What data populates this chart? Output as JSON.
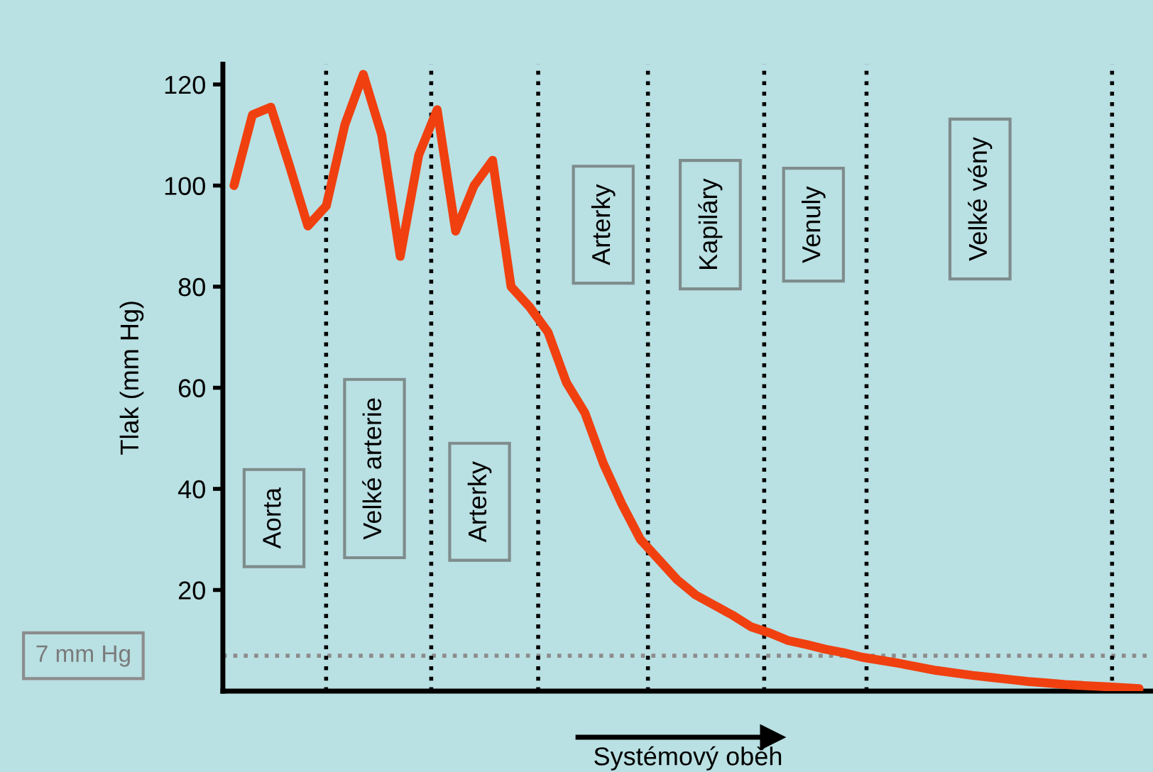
{
  "chart_data": {
    "type": "line",
    "ylabel": "Tlak (mm Hg)",
    "xlabel": "Systémový oběh",
    "categories": [
      null,
      null,
      null,
      null,
      null,
      null,
      null,
      null,
      null,
      null,
      null,
      null,
      null,
      null,
      null,
      null,
      null,
      null,
      null,
      null,
      null,
      null,
      null,
      null,
      null,
      null,
      null,
      null,
      null,
      null,
      null,
      null,
      null,
      null,
      null,
      null,
      null,
      null,
      null,
      null,
      null,
      null,
      null,
      null,
      null,
      null,
      null,
      null,
      null,
      null
    ],
    "series": [
      {
        "color": "#f0400f",
        "values": [
          100,
          114,
          115.5,
          104,
          92,
          96,
          112,
          122,
          110,
          86,
          106,
          115,
          91,
          100,
          105,
          80,
          76,
          71,
          61,
          55,
          45,
          37,
          30,
          26,
          22,
          19,
          17,
          15,
          12.7,
          11.5,
          10,
          9.2,
          8.3,
          7.6,
          6.7,
          6.1,
          5.5,
          4.8,
          4.1,
          3.6,
          3.1,
          2.7,
          2.3,
          1.9,
          1.6,
          1.3,
          1.1,
          0.9,
          0.7,
          0.5
        ]
      }
    ],
    "ylim": [
      0,
      124
    ],
    "yticks": [
      20,
      40,
      60,
      80,
      100,
      120
    ],
    "tick_labels": "y",
    "grid": false,
    "marker": "none",
    "line_style": "solid",
    "ref_lines": [
      {
        "axis": "y",
        "value": 7,
        "label": "7 mm Hg",
        "color": "#8c8c8c",
        "line_style": "dotted"
      }
    ],
    "annotations": [
      "Aorta",
      "Velké arterie",
      "Arterky",
      "Arterky",
      "Kapiláry",
      "Venuly",
      "Velké vény"
    ]
  }
}
